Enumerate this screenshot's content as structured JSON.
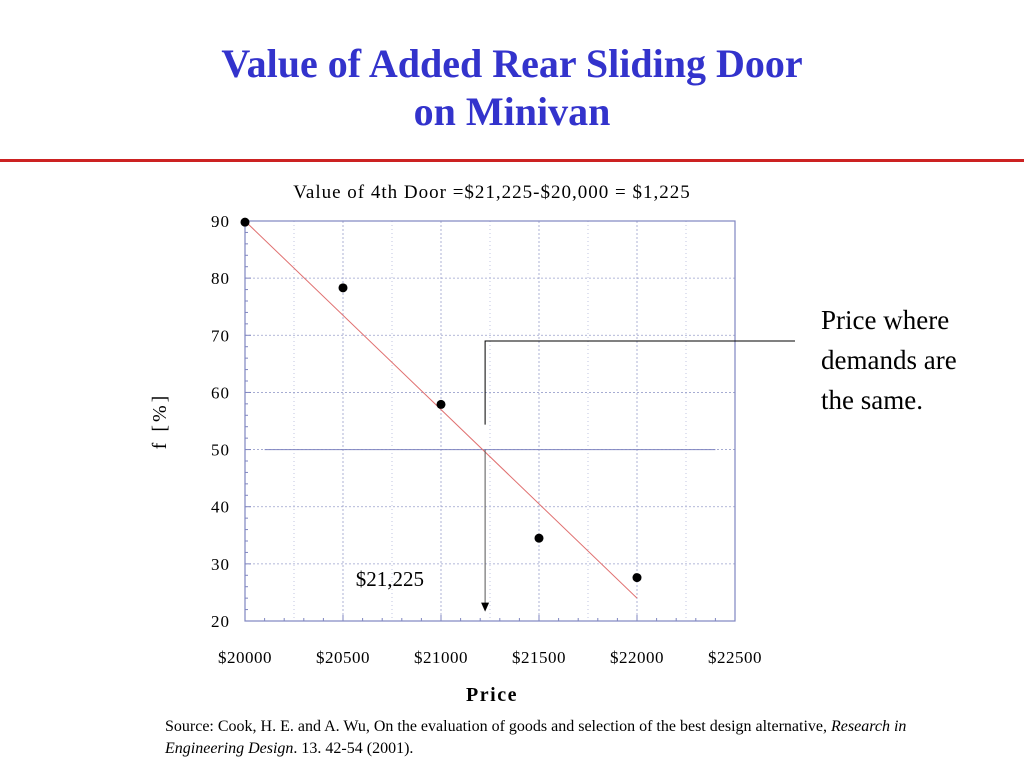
{
  "slide": {
    "title_line1": "Value of Added Rear Sliding Door",
    "title_line2": "on Minivan",
    "callout": [
      "Price where",
      "demands are",
      "the same."
    ],
    "source": {
      "prefix": "Source: Cook, H. E. and A. Wu, On the evaluation of goods and selection of the best design alternative, ",
      "journal": "Research in Engineering Design",
      "suffix": ". 13. 42-54 (2001)."
    }
  },
  "colors": {
    "title": "#3333cc",
    "rule": "#cc2222",
    "fit_line": "#e07070",
    "grid": "#9aa0cc",
    "frame": "#7f85c0",
    "points": "#000000"
  },
  "chart_data": {
    "type": "scatter",
    "title": "Value of 4th Door =$21,225-$20,000 = $1,225",
    "xlabel": "Price",
    "ylabel": "f  [%]",
    "xlim": [
      20000,
      22500
    ],
    "ylim": [
      20,
      90
    ],
    "x_ticks": [
      20000,
      20500,
      21000,
      21500,
      22000,
      22500
    ],
    "x_tick_labels": [
      "$20000",
      "$20500",
      "$21000",
      "$21500",
      "$22000",
      "$22500"
    ],
    "y_ticks": [
      20,
      30,
      40,
      50,
      60,
      70,
      80,
      90
    ],
    "y_tick_labels": [
      "20",
      "30",
      "40",
      "50",
      "60",
      "70",
      "80",
      "90"
    ],
    "grid": true,
    "points": [
      {
        "x": 20000,
        "y": 89.8
      },
      {
        "x": 20500,
        "y": 78.3
      },
      {
        "x": 21000,
        "y": 57.9
      },
      {
        "x": 21500,
        "y": 34.5
      },
      {
        "x": 22000,
        "y": 27.6
      }
    ],
    "fit_line": {
      "x": [
        20000,
        22000
      ],
      "y": [
        90,
        24
      ]
    },
    "reference_line": {
      "y": 50,
      "x_range": [
        20100,
        22400
      ]
    },
    "drop_arrow": {
      "x": 21225,
      "y_from": 50,
      "y_to": 22
    },
    "annotation": {
      "text": "$21,225",
      "x": 20800,
      "y": 27.7
    }
  }
}
